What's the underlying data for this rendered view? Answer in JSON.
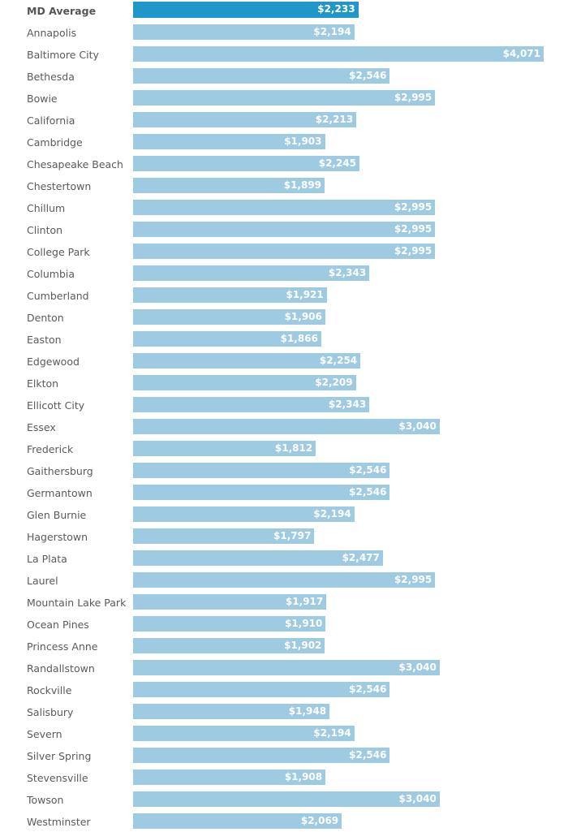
{
  "chart_data": {
    "type": "bar",
    "orientation": "horizontal",
    "title": "",
    "xlabel": "",
    "ylabel": "",
    "xlim": [
      0,
      4071
    ],
    "colors": {
      "highlight": "#2196c9",
      "default": "#9fcbe2"
    },
    "categories": [
      "MD Average",
      "Annapolis",
      "Baltimore City",
      "Bethesda",
      "Bowie",
      "California",
      "Cambridge",
      "Chesapeake Beach",
      "Chestertown",
      "Chillum",
      "Clinton",
      "College Park",
      "Columbia",
      "Cumberland",
      "Denton",
      "Easton",
      "Edgewood",
      "Elkton",
      "Ellicott City",
      "Essex",
      "Frederick",
      "Gaithersburg",
      "Germantown",
      "Glen Burnie",
      "Hagerstown",
      "La Plata",
      "Laurel",
      "Mountain Lake Park",
      "Ocean Pines",
      "Princess Anne",
      "Randallstown",
      "Rockville",
      "Salisbury",
      "Severn",
      "Silver Spring",
      "Stevensville",
      "Towson",
      "Westminster"
    ],
    "values": [
      2233,
      2194,
      4071,
      2546,
      2995,
      2213,
      1903,
      2245,
      1899,
      2995,
      2995,
      2995,
      2343,
      1921,
      1906,
      1866,
      2254,
      2209,
      2343,
      3040,
      1812,
      2546,
      2546,
      2194,
      1797,
      2477,
      2995,
      1917,
      1910,
      1902,
      3040,
      2546,
      1948,
      2194,
      2546,
      1908,
      3040,
      2069
    ],
    "labels": [
      "$2,233",
      "$2,194",
      "$4,071",
      "$2,546",
      "$2,995",
      "$2,213",
      "$1,903",
      "$2,245",
      "$1,899",
      "$2,995",
      "$2,995",
      "$2,995",
      "$2,343",
      "$1,921",
      "$1,906",
      "$1,866",
      "$2,254",
      "$2,209",
      "$2,343",
      "$3,040",
      "$1,812",
      "$2,546",
      "$2,546",
      "$2,194",
      "$1,797",
      "$2,477",
      "$2,995",
      "$1,917",
      "$1,910",
      "$1,902",
      "$3,040",
      "$2,546",
      "$1,948",
      "$2,194",
      "$2,546",
      "$1,908",
      "$3,040",
      "$2,069"
    ]
  }
}
